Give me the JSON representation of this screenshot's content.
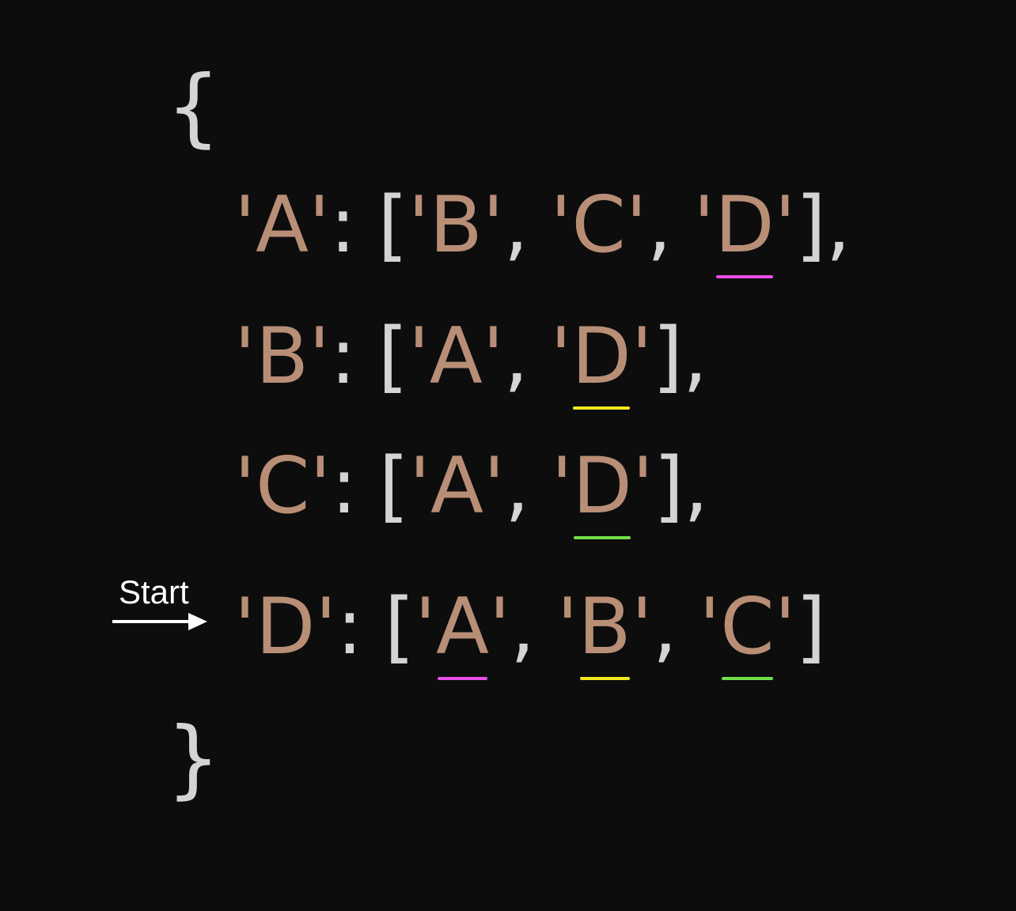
{
  "brace_open": "{",
  "brace_close": "}",
  "start_label": "Start",
  "colors": {
    "background": "#0d0d0d",
    "string": "#b98e76",
    "punctuation": "#d4d4d4",
    "underline_magenta": "#e84fe8",
    "underline_yellow": "#f2ea1f",
    "underline_green": "#6fe04a"
  },
  "entries": [
    {
      "key": "A",
      "neighbors": [
        {
          "label": "B",
          "underline": null
        },
        {
          "label": "C",
          "underline": null
        },
        {
          "label": "D",
          "underline": "#e84fe8"
        }
      ]
    },
    {
      "key": "B",
      "neighbors": [
        {
          "label": "A",
          "underline": null
        },
        {
          "label": "D",
          "underline": "#f2ea1f"
        }
      ]
    },
    {
      "key": "C",
      "neighbors": [
        {
          "label": "A",
          "underline": null
        },
        {
          "label": "D",
          "underline": "#6fe04a"
        }
      ]
    },
    {
      "key": "D",
      "neighbors": [
        {
          "label": "A",
          "underline": "#e84fe8"
        },
        {
          "label": "B",
          "underline": "#f2ea1f"
        },
        {
          "label": "C",
          "underline": "#6fe04a"
        }
      ]
    }
  ]
}
